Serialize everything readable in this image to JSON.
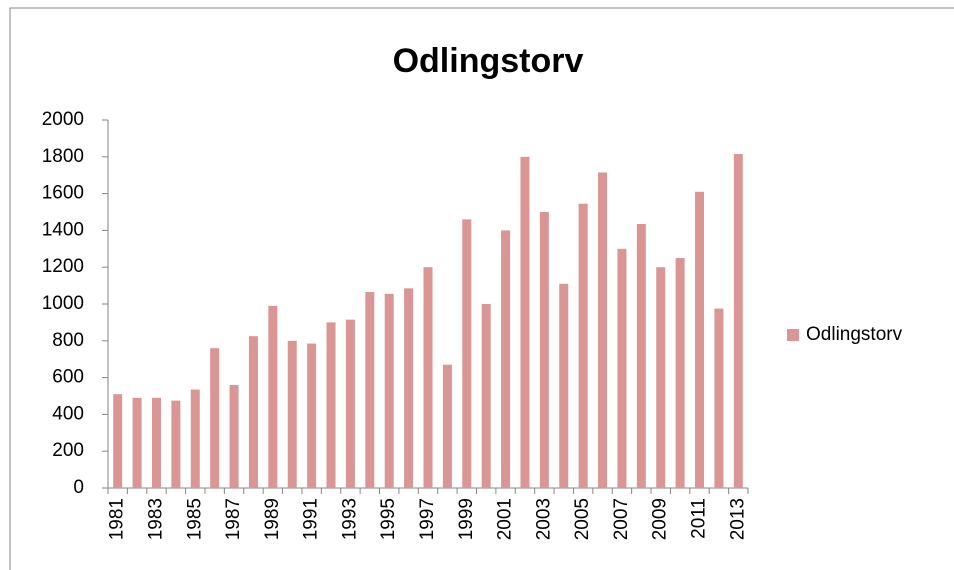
{
  "chart_data": {
    "type": "bar",
    "title": "Odlingstorv",
    "categories": [
      "1981",
      null,
      "1983",
      null,
      "1985",
      null,
      "1987",
      null,
      "1989",
      null,
      "1991",
      null,
      "1993",
      null,
      "1995",
      null,
      "1997",
      null,
      "1999",
      null,
      "2001",
      null,
      "2003",
      null,
      "2005",
      null,
      "2007",
      null,
      "2009",
      null,
      "2011",
      null,
      "2013"
    ],
    "series": [
      {
        "name": "Odlingstorv",
        "color": "#d99694",
        "values": [
          510,
          490,
          490,
          475,
          535,
          760,
          560,
          825,
          990,
          800,
          785,
          900,
          915,
          1065,
          1055,
          1085,
          1200,
          670,
          1460,
          1000,
          1400,
          1800,
          1500,
          1110,
          1545,
          1715,
          1300,
          1435,
          1200,
          1250,
          1610,
          975,
          1815
        ]
      }
    ],
    "ylim": [
      0,
      2000
    ],
    "yticks": [
      0,
      200,
      400,
      600,
      800,
      1000,
      1200,
      1400,
      1600,
      1800,
      2000
    ],
    "grid": false,
    "legend": "right"
  }
}
